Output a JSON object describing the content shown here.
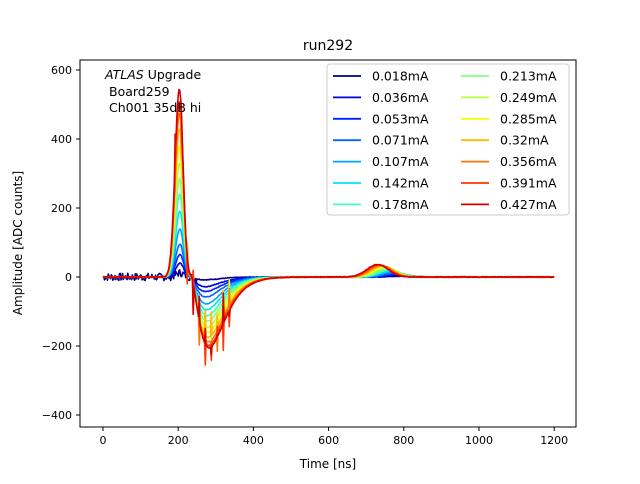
{
  "chart_data": {
    "type": "line",
    "title": "run292",
    "xlabel": "Time [ns]",
    "ylabel": "Amplitude [ADC counts]",
    "xlim": [
      -60,
      1260
    ],
    "ylim": [
      -440,
      630
    ],
    "xticks": [
      0,
      200,
      400,
      600,
      800,
      1000,
      1200
    ],
    "yticks": [
      -400,
      -200,
      0,
      200,
      400,
      600
    ],
    "annotation": {
      "italic": "ATLAS",
      "rest": " Upgrade",
      "line2": "Board259",
      "line3": "Ch001 35dB hi"
    },
    "legend_placement": "top-right",
    "legend_columns": 2,
    "pulse_model_note": "per-series peak (ADC) near 205 ns, undershoot minimum (ADC) near 275 ns, late bump near 730 ns",
    "series": [
      {
        "name": "0.018mA",
        "color": "#00008f",
        "peak": 12,
        "undershoot": -8,
        "bump": 2
      },
      {
        "name": "0.036mA",
        "color": "#0000d5",
        "peak": 40,
        "undershoot": -28,
        "bump": 5
      },
      {
        "name": "0.053mA",
        "color": "#0020ff",
        "peak": 65,
        "undershoot": -42,
        "bump": 8
      },
      {
        "name": "0.071mA",
        "color": "#0064ff",
        "peak": 95,
        "undershoot": -58,
        "bump": 11
      },
      {
        "name": "0.107mA",
        "color": "#00a4ff",
        "peak": 140,
        "undershoot": -78,
        "bump": 15
      },
      {
        "name": "0.142mA",
        "color": "#00e4f8",
        "peak": 190,
        "undershoot": -95,
        "bump": 18
      },
      {
        "name": "0.178mA",
        "color": "#40ffb7",
        "peak": 240,
        "undershoot": -112,
        "bump": 21
      },
      {
        "name": "0.213mA",
        "color": "#80ff80",
        "peak": 285,
        "undershoot": -128,
        "bump": 24
      },
      {
        "name": "0.249mA",
        "color": "#b7ff40",
        "peak": 330,
        "undershoot": -145,
        "bump": 27
      },
      {
        "name": "0.285mA",
        "color": "#f1fc06",
        "peak": 380,
        "undershoot": -160,
        "bump": 30
      },
      {
        "name": "0.32mA",
        "color": "#ffb900",
        "peak": 430,
        "undershoot": -175,
        "bump": 32
      },
      {
        "name": "0.356mA",
        "color": "#ff7700",
        "peak": 475,
        "undershoot": -188,
        "bump": 34
      },
      {
        "name": "0.391mA",
        "color": "#ff3800",
        "peak": 510,
        "undershoot": -198,
        "bump": 35
      },
      {
        "name": "0.427mA",
        "color": "#d40000",
        "peak": 545,
        "undershoot": -205,
        "bump": 36
      }
    ]
  }
}
